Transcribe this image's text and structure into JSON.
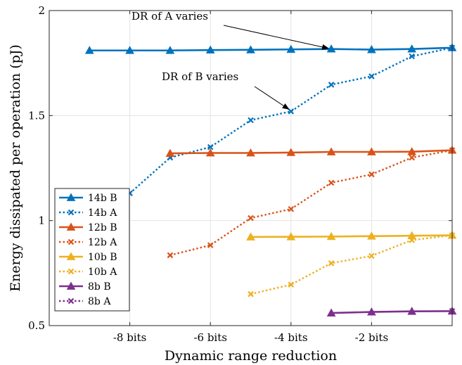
{
  "chart_data": {
    "type": "line",
    "xlabel": "Dynamic range reduction",
    "ylabel": "Energy dissipated per operation (pJ)",
    "xlim": [
      -10,
      0
    ],
    "ylim": [
      0.5,
      2
    ],
    "x_ticks": [
      -8,
      -6,
      -4,
      -2
    ],
    "x_tick_labels": [
      "-8 bits",
      "-6 bits",
      "-4 bits",
      "-2 bits"
    ],
    "y_ticks": [
      0.5,
      1,
      1.5,
      2
    ],
    "y_tick_labels": [
      "0.5",
      "1",
      "1.5",
      "2"
    ],
    "grid": true,
    "legend_position": "bottom-left",
    "annotations": [
      {
        "text": "DR of A varies",
        "arrow_to": {
          "x": -3,
          "y": 1.81
        }
      },
      {
        "text": "DR of B varies",
        "arrow_to": {
          "x": -4,
          "y": 1.52
        }
      }
    ],
    "series": [
      {
        "name": "14b B",
        "color": "#0072BD",
        "style": "solid",
        "marker": "triangle",
        "x": [
          -9,
          -8,
          -7,
          -6,
          -5,
          -4,
          -3,
          -2,
          -1,
          0
        ],
        "y": [
          1.81,
          1.81,
          1.81,
          1.812,
          1.813,
          1.815,
          1.817,
          1.814,
          1.817,
          1.823
        ]
      },
      {
        "name": "14b A",
        "color": "#0072BD",
        "style": "dotted",
        "marker": "x",
        "x": [
          -8,
          -7,
          -6,
          -5,
          -4,
          -3,
          -2,
          -1,
          0
        ],
        "y": [
          1.13,
          1.3,
          1.35,
          1.478,
          1.52,
          1.647,
          1.687,
          1.782,
          1.823
        ]
      },
      {
        "name": "12b B",
        "color": "#D95319",
        "style": "solid",
        "marker": "triangle",
        "x": [
          -7,
          -6,
          -5,
          -4,
          -3,
          -2,
          -1,
          0
        ],
        "y": [
          1.32,
          1.322,
          1.322,
          1.324,
          1.327,
          1.327,
          1.328,
          1.335
        ]
      },
      {
        "name": "12b A",
        "color": "#D95319",
        "style": "dotted",
        "marker": "x",
        "x": [
          -7,
          -6,
          -5,
          -4,
          -3,
          -2,
          -1,
          0
        ],
        "y": [
          0.835,
          0.883,
          1.012,
          1.055,
          1.18,
          1.22,
          1.3,
          1.335
        ]
      },
      {
        "name": "10b B",
        "color": "#EDB120",
        "style": "solid",
        "marker": "triangle",
        "x": [
          -5,
          -4,
          -3,
          -2,
          -1,
          0
        ],
        "y": [
          0.922,
          0.923,
          0.924,
          0.926,
          0.928,
          0.93
        ]
      },
      {
        "name": "10b A",
        "color": "#EDB120",
        "style": "dotted",
        "marker": "x",
        "x": [
          -5,
          -4,
          -3,
          -2,
          -1,
          0
        ],
        "y": [
          0.65,
          0.695,
          0.797,
          0.832,
          0.907,
          0.93
        ]
      },
      {
        "name": "8b B",
        "color": "#7E2F8E",
        "style": "solid",
        "marker": "triangle",
        "x": [
          -3,
          -2,
          -1,
          0
        ],
        "y": [
          0.56,
          0.565,
          0.568,
          0.569
        ]
      },
      {
        "name": "8b A",
        "color": "#7E2F8E",
        "style": "dotted",
        "marker": "x",
        "x": [
          0
        ],
        "y": [
          0.569
        ]
      }
    ]
  }
}
